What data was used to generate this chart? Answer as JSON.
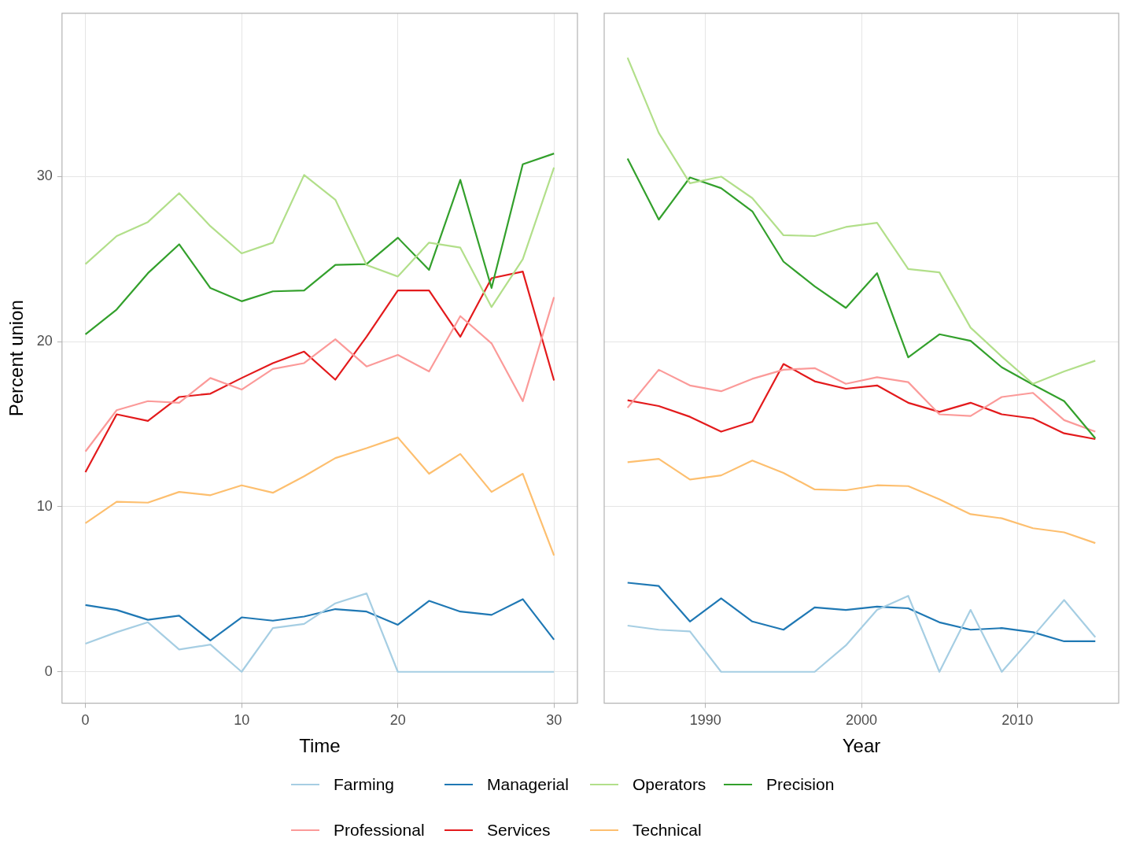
{
  "chart_data": [
    {
      "type": "line",
      "xlabel": "Time",
      "ylabel": "Percent union",
      "x": [
        0,
        2,
        4,
        6,
        8,
        10,
        12,
        14,
        16,
        18,
        20,
        22,
        24,
        26,
        28,
        30
      ],
      "xlim": [
        -1.5,
        31.5
      ],
      "xticks": [
        0,
        10,
        20,
        30
      ],
      "ylim": [
        -1.9,
        39.9
      ],
      "yticks": [
        0,
        10,
        20,
        30
      ],
      "grid": true,
      "legend": "bottom",
      "series": [
        {
          "name": "Farming",
          "color": "#a6cee3",
          "values": [
            1.7,
            2.4,
            3.0,
            1.35,
            1.65,
            0,
            2.65,
            2.9,
            4.15,
            4.75,
            0,
            0,
            0,
            0,
            0,
            0
          ]
        },
        {
          "name": "Managerial",
          "color": "#1f78b4",
          "values": [
            4.05,
            3.75,
            3.15,
            3.4,
            1.9,
            3.3,
            3.1,
            3.35,
            3.8,
            3.65,
            2.85,
            4.3,
            3.65,
            3.45,
            4.4,
            1.95
          ]
        },
        {
          "name": "Operators",
          "color": "#b2df8a",
          "values": [
            24.7,
            26.4,
            27.25,
            29.0,
            27.0,
            25.35,
            26.0,
            30.1,
            28.6,
            24.65,
            23.95,
            26.0,
            25.7,
            22.1,
            25.0,
            30.55
          ]
        },
        {
          "name": "Precision",
          "color": "#33a02c",
          "values": [
            20.45,
            21.95,
            24.15,
            25.9,
            23.25,
            22.45,
            23.05,
            23.1,
            24.65,
            24.7,
            26.3,
            24.35,
            29.8,
            23.25,
            30.75,
            31.4
          ]
        },
        {
          "name": "Professional",
          "color": "#fb9a99",
          "values": [
            13.35,
            15.85,
            16.4,
            16.3,
            17.8,
            17.1,
            18.35,
            18.7,
            20.15,
            18.5,
            19.2,
            18.2,
            21.55,
            19.9,
            16.4,
            22.7
          ]
        },
        {
          "name": "Services",
          "color": "#e31a1c",
          "values": [
            12.1,
            15.6,
            15.2,
            16.65,
            16.85,
            17.8,
            18.7,
            19.4,
            17.7,
            20.3,
            23.1,
            23.1,
            20.3,
            23.85,
            24.25,
            17.65
          ]
        },
        {
          "name": "Technical",
          "color": "#fdbf6f",
          "values": [
            9.0,
            10.3,
            10.25,
            10.9,
            10.7,
            11.3,
            10.85,
            11.85,
            12.95,
            13.55,
            14.2,
            12.0,
            13.2,
            10.9,
            12.0,
            7.05
          ]
        }
      ]
    },
    {
      "type": "line",
      "xlabel": "Year",
      "x": [
        1985,
        1987,
        1989,
        1991,
        1993,
        1995,
        1997,
        1999,
        2001,
        2003,
        2005,
        2007,
        2009,
        2011,
        2013,
        2015
      ],
      "xlim": [
        1983.5,
        2016.5
      ],
      "xticks": [
        1990,
        2000,
        2010
      ],
      "ylim": [
        -1.9,
        39.9
      ],
      "yticks": [
        0,
        10,
        20,
        30
      ],
      "grid": true,
      "tick_labels": "x",
      "series": [
        {
          "name": "Farming",
          "color": "#a6cee3",
          "values": [
            2.8,
            2.55,
            2.45,
            0,
            0,
            0,
            0,
            1.6,
            3.75,
            4.6,
            0,
            3.75,
            0,
            2.15,
            4.35,
            2.1
          ]
        },
        {
          "name": "Managerial",
          "color": "#1f78b4",
          "values": [
            5.4,
            5.2,
            3.05,
            4.45,
            3.05,
            2.55,
            3.9,
            3.75,
            3.95,
            3.85,
            3.0,
            2.55,
            2.65,
            2.4,
            1.85,
            1.85
          ]
        },
        {
          "name": "Operators",
          "color": "#b2df8a",
          "values": [
            37.2,
            32.65,
            29.6,
            30.0,
            28.7,
            26.45,
            26.4,
            26.95,
            27.2,
            24.4,
            24.2,
            20.85,
            19.1,
            17.45,
            18.2,
            18.85
          ]
        },
        {
          "name": "Precision",
          "color": "#33a02c",
          "values": [
            31.1,
            27.4,
            29.95,
            29.3,
            27.9,
            24.85,
            23.35,
            22.05,
            24.15,
            19.05,
            20.45,
            20.05,
            18.45,
            17.4,
            16.4,
            14.15
          ]
        },
        {
          "name": "Professional",
          "color": "#fb9a99",
          "values": [
            16.0,
            18.3,
            17.35,
            17.0,
            17.75,
            18.3,
            18.4,
            17.45,
            17.85,
            17.55,
            15.6,
            15.5,
            16.65,
            16.9,
            15.25,
            14.55
          ]
        },
        {
          "name": "Services",
          "color": "#e31a1c",
          "values": [
            16.45,
            16.1,
            15.45,
            14.55,
            15.15,
            18.65,
            17.6,
            17.15,
            17.35,
            16.3,
            15.75,
            16.3,
            15.6,
            15.35,
            14.45,
            14.1
          ]
        },
        {
          "name": "Technical",
          "color": "#fdbf6f",
          "values": [
            12.7,
            12.9,
            11.65,
            11.9,
            12.8,
            12.05,
            11.05,
            11.0,
            11.3,
            11.25,
            10.45,
            9.55,
            9.3,
            8.7,
            8.45,
            7.8
          ]
        }
      ]
    }
  ]
}
